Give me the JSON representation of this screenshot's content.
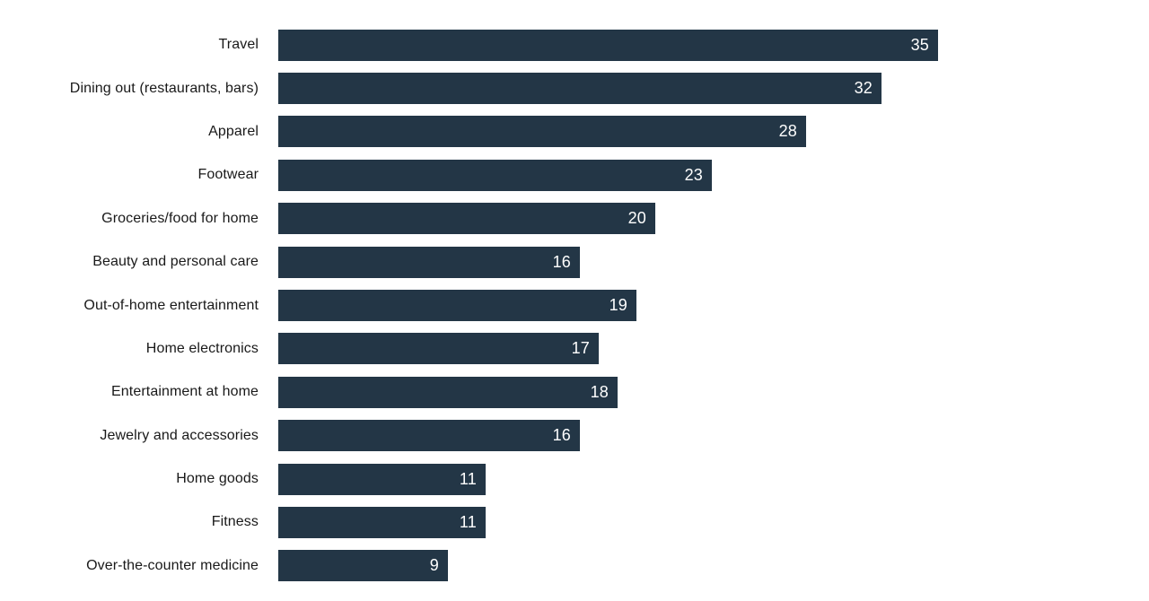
{
  "chart_data": {
    "type": "bar",
    "orientation": "horizontal",
    "title": "",
    "xlabel": "",
    "ylabel": "",
    "xlim": [
      0,
      35
    ],
    "grid": false,
    "legend": null,
    "bar_color": "#233646",
    "value_label_color": "#ffffff",
    "category_label_color": "#191919",
    "categories": [
      "Travel",
      "Dining out (restaurants, bars)",
      "Apparel",
      "Footwear",
      "Groceries/food for home",
      "Beauty and personal care",
      "Out-of-home entertainment",
      "Home electronics",
      "Entertainment at home",
      "Jewelry and accessories",
      "Home goods",
      "Fitness",
      "Over-the-counter medicine"
    ],
    "values": [
      35,
      32,
      28,
      23,
      20,
      16,
      19,
      17,
      18,
      16,
      11,
      11,
      9
    ]
  }
}
